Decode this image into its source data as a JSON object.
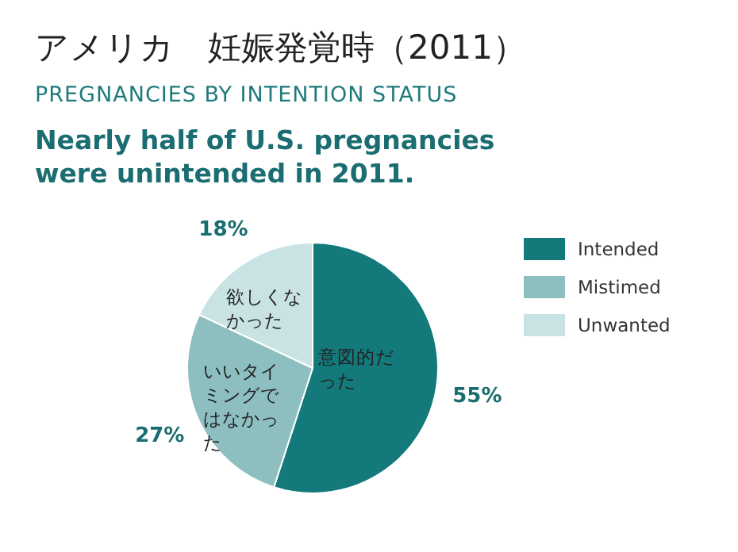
{
  "chart_data": {
    "type": "pie",
    "title": "アメリカ　妊娠発覚時（2011）",
    "subtitle": "PREGNANCIES BY INTENTION STATUS",
    "categories": [
      "Intended",
      "Mistimed",
      "Unwanted"
    ],
    "values": [
      55,
      27,
      18
    ],
    "colors": [
      "#13797a",
      "#8dbfc1",
      "#c9e3e4"
    ],
    "value_labels": [
      "55%",
      "27%",
      "18%"
    ],
    "legend": "right",
    "annotations": [
      "Nearly half of U.S. pregnancies were unintended in 2011.",
      {
        "text": "意図的だった",
        "x": "Intended"
      },
      {
        "text": "いいタイミングではなかった",
        "x": "Mistimed"
      },
      {
        "text": "欲しくなかった",
        "x": "Unwanted"
      }
    ]
  }
}
